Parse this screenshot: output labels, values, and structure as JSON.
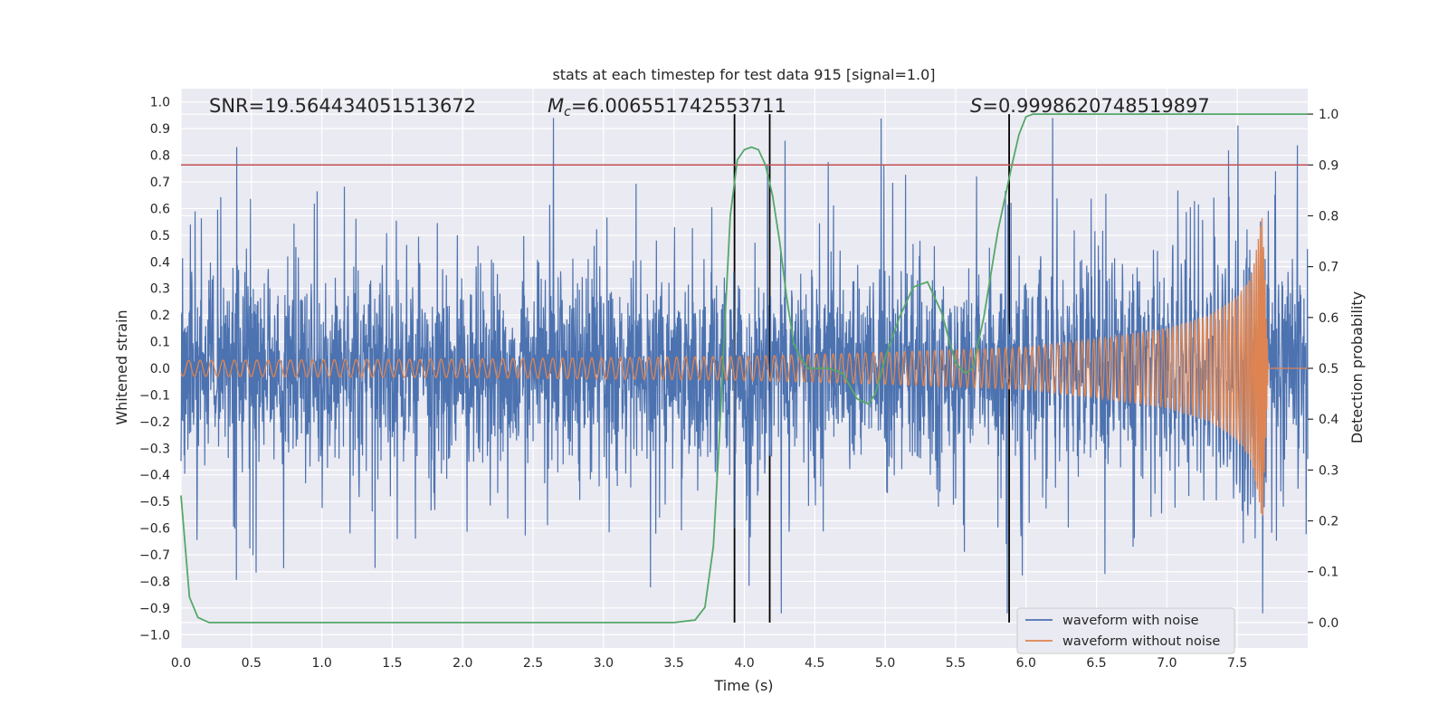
{
  "chart_data": {
    "type": "line",
    "title": "stats at each timestep for test data 915 [signal=1.0]",
    "xlabel": "Time (s)",
    "ylabel_left": "Whitened strain",
    "ylabel_right": "Detection probability",
    "xlim": [
      0.0,
      8.0
    ],
    "ylim_left": [
      -1.05,
      1.05
    ],
    "ylim_right": [
      -0.05,
      1.05
    ],
    "x_ticks": [
      "0.0",
      "0.5",
      "1.0",
      "1.5",
      "2.0",
      "2.5",
      "3.0",
      "3.5",
      "4.0",
      "4.5",
      "5.0",
      "5.5",
      "6.0",
      "6.5",
      "7.0",
      "7.5"
    ],
    "x_tick_values": [
      0.0,
      0.5,
      1.0,
      1.5,
      2.0,
      2.5,
      3.0,
      3.5,
      4.0,
      4.5,
      5.0,
      5.5,
      6.0,
      6.5,
      7.0,
      7.5
    ],
    "y_left_ticks": [
      "1.0",
      "0.9",
      "0.8",
      "0.7",
      "0.6",
      "0.5",
      "0.4",
      "0.3",
      "0.2",
      "0.1",
      "0.0",
      "−0.1",
      "−0.2",
      "−0.3",
      "−0.4",
      "−0.5",
      "−0.6",
      "−0.7",
      "−0.8",
      "−0.9",
      "−1.0"
    ],
    "y_left_tick_values": [
      1.0,
      0.9,
      0.8,
      0.7,
      0.6,
      0.5,
      0.4,
      0.3,
      0.2,
      0.1,
      0.0,
      -0.1,
      -0.2,
      -0.3,
      -0.4,
      -0.5,
      -0.6,
      -0.7,
      -0.8,
      -0.9,
      -1.0
    ],
    "y_right_ticks": [
      "1.0",
      "0.9",
      "0.8",
      "0.7",
      "0.6",
      "0.5",
      "0.4",
      "0.3",
      "0.2",
      "0.1",
      "0.0"
    ],
    "y_right_tick_values": [
      1.0,
      0.9,
      0.8,
      0.7,
      0.6,
      0.5,
      0.4,
      0.3,
      0.2,
      0.1,
      0.0
    ],
    "annotations": {
      "snr": "SNR=19.564434051513672",
      "mc_symbol": "M",
      "mc_subscript": "c",
      "mc_value": "=6.006551742553711",
      "s_symbol": "S",
      "s_value": "=0.9998620748519897"
    },
    "threshold_line": {
      "axis": "right",
      "value": 0.9,
      "color": "#c44e52"
    },
    "vertical_lines": [
      3.93,
      4.18,
      5.88
    ],
    "series": [
      {
        "name": "waveform with noise",
        "axis": "left",
        "color": "#4c72b0",
        "description": "dense noisy whitened strain, amplitude roughly ±0.4 with spikes up to about 0.9",
        "x_range": [
          0.0,
          8.0
        ]
      },
      {
        "name": "waveform without noise",
        "axis": "left",
        "color": "#dd8452",
        "description": "chirp signal growing from about 0.03 amplitude to about 0.6 peak near t=7.7 s, then zero",
        "envelope_x": [
          0.0,
          2.0,
          4.0,
          5.0,
          6.0,
          6.5,
          7.0,
          7.3,
          7.5,
          7.6,
          7.68,
          7.72,
          8.0
        ],
        "envelope_y": [
          0.03,
          0.035,
          0.045,
          0.06,
          0.08,
          0.11,
          0.15,
          0.2,
          0.27,
          0.35,
          0.58,
          0.0,
          0.0
        ]
      },
      {
        "name": "detection probability",
        "axis": "right",
        "color": "#55a868",
        "x": [
          0.0,
          0.06,
          0.12,
          0.2,
          0.3,
          0.5,
          1.0,
          2.0,
          3.0,
          3.5,
          3.65,
          3.72,
          3.78,
          3.82,
          3.86,
          3.9,
          3.95,
          4.0,
          4.05,
          4.1,
          4.15,
          4.2,
          4.25,
          4.3,
          4.35,
          4.4,
          4.45,
          4.5,
          4.6,
          4.7,
          4.8,
          4.88,
          4.93,
          5.0,
          5.1,
          5.2,
          5.3,
          5.4,
          5.5,
          5.57,
          5.62,
          5.7,
          5.8,
          5.9,
          5.95,
          6.0,
          6.05,
          6.1,
          6.2,
          7.0,
          8.0
        ],
        "y": [
          0.25,
          0.05,
          0.01,
          0.0,
          0.0,
          0.0,
          0.0,
          0.0,
          0.0,
          0.0,
          0.005,
          0.03,
          0.15,
          0.35,
          0.58,
          0.8,
          0.91,
          0.93,
          0.935,
          0.93,
          0.9,
          0.84,
          0.75,
          0.64,
          0.55,
          0.52,
          0.5,
          0.5,
          0.5,
          0.49,
          0.44,
          0.43,
          0.45,
          0.52,
          0.6,
          0.66,
          0.67,
          0.61,
          0.51,
          0.49,
          0.5,
          0.6,
          0.77,
          0.9,
          0.96,
          0.995,
          1.0,
          1.0,
          1.0,
          1.0,
          1.0
        ]
      }
    ],
    "legend": {
      "location": "lower-right",
      "entries": [
        {
          "label": "waveform with noise",
          "color": "#4c72b0"
        },
        {
          "label": "waveform without noise",
          "color": "#dd8452"
        }
      ]
    },
    "background": "#eaeaf2",
    "grid": true
  }
}
